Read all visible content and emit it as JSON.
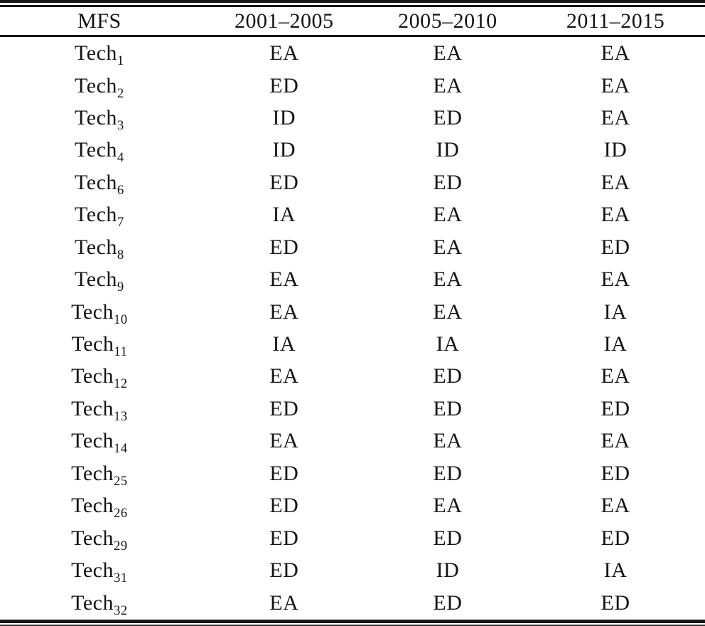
{
  "table": {
    "columns": [
      "MFS",
      "2001–2005",
      "2005–2010",
      "2011–2015"
    ],
    "rows": [
      {
        "base": "Tech",
        "sub": "1",
        "values": [
          "EA",
          "EA",
          "EA"
        ]
      },
      {
        "base": "Tech",
        "sub": "2",
        "values": [
          "ED",
          "EA",
          "EA"
        ]
      },
      {
        "base": "Tech",
        "sub": "3",
        "values": [
          "ID",
          "ED",
          "EA"
        ]
      },
      {
        "base": "Tech",
        "sub": "4",
        "values": [
          "ID",
          "ID",
          "ID"
        ]
      },
      {
        "base": "Tech",
        "sub": "6",
        "values": [
          "ED",
          "ED",
          "EA"
        ]
      },
      {
        "base": "Tech",
        "sub": "7",
        "values": [
          "IA",
          "EA",
          "EA"
        ]
      },
      {
        "base": "Tech",
        "sub": "8",
        "values": [
          "ED",
          "EA",
          "ED"
        ]
      },
      {
        "base": "Tech",
        "sub": "9",
        "values": [
          "EA",
          "EA",
          "EA"
        ]
      },
      {
        "base": "Tech",
        "sub": "10",
        "values": [
          "EA",
          "EA",
          "IA"
        ]
      },
      {
        "base": "Tech",
        "sub": "11",
        "values": [
          "IA",
          "IA",
          "IA"
        ]
      },
      {
        "base": "Tech",
        "sub": "12",
        "values": [
          "EA",
          "ED",
          "EA"
        ]
      },
      {
        "base": "Tech",
        "sub": "13",
        "values": [
          "ED",
          "ED",
          "ED"
        ]
      },
      {
        "base": "Tech",
        "sub": "14",
        "values": [
          "EA",
          "EA",
          "EA"
        ]
      },
      {
        "base": "Tech",
        "sub": "25",
        "values": [
          "ED",
          "ED",
          "ED"
        ]
      },
      {
        "base": "Tech",
        "sub": "26",
        "values": [
          "ED",
          "EA",
          "EA"
        ]
      },
      {
        "base": "Tech",
        "sub": "29",
        "values": [
          "ED",
          "ED",
          "ED"
        ]
      },
      {
        "base": "Tech",
        "sub": "31",
        "values": [
          "ED",
          "ID",
          "IA"
        ]
      },
      {
        "base": "Tech",
        "sub": "32",
        "values": [
          "EA",
          "ED",
          "ED"
        ]
      }
    ]
  },
  "colors": {
    "text": "#141414",
    "rule": "#161616",
    "background": "#ffffff"
  }
}
